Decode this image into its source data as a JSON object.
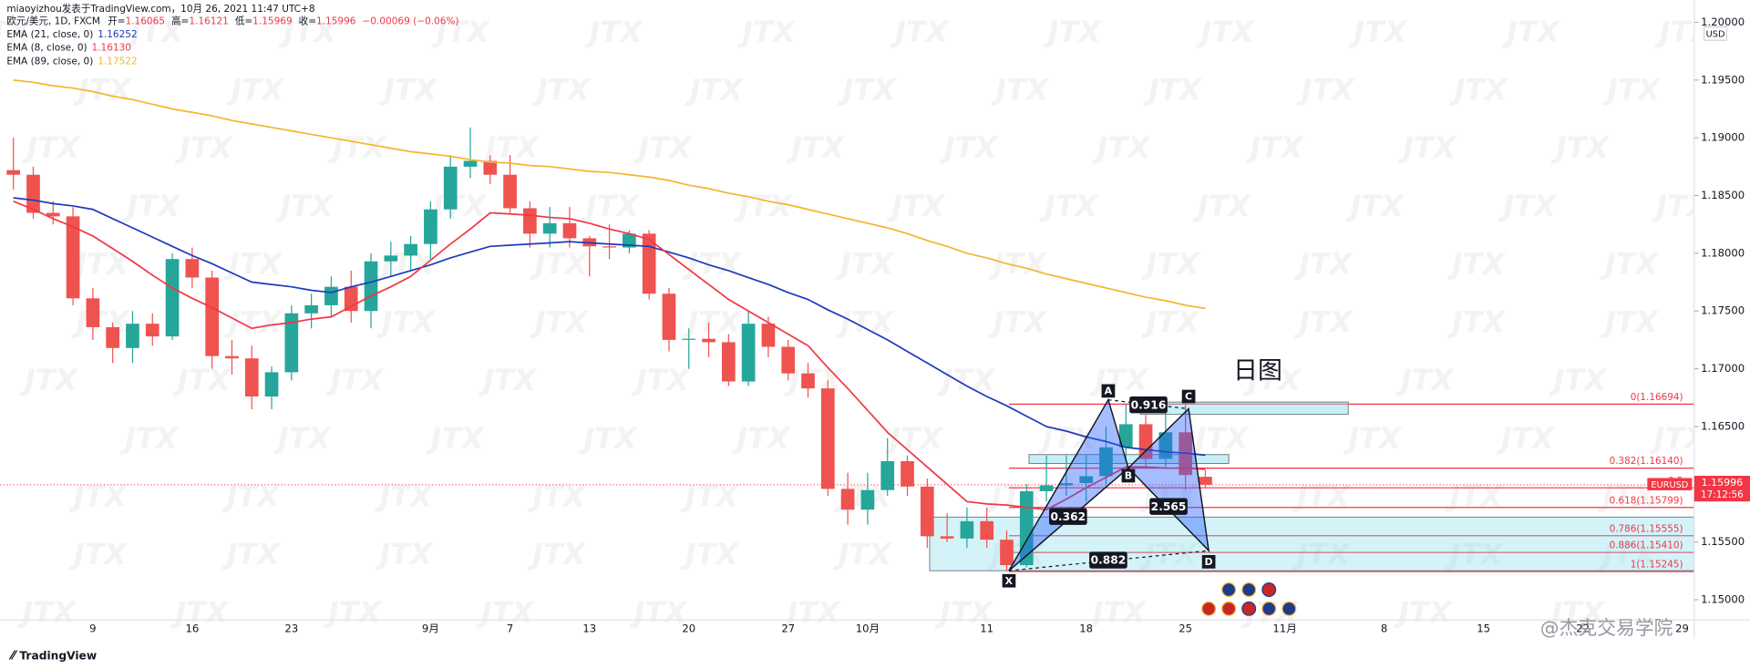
{
  "header": {
    "publisher": "miaoyizhou发表于TradingView.com，10月 26, 2021 11:47 UTC+8",
    "symbol": "欧元/美元, 1D, FXCM",
    "open_prefix": "开=",
    "high_prefix": "高=",
    "low_prefix": "低=",
    "close_prefix": "收=",
    "change": "−0.00069 (−0.06%)"
  },
  "currency": "USD",
  "watermark": "JTX",
  "logo": "TradingView",
  "signature": "@杰克交易学院",
  "annotation": "日图",
  "price_tag": {
    "symbol": "EURUSD",
    "countdown": "17:12:56"
  },
  "pattern": {
    "points": [
      "X",
      "A",
      "B",
      "C",
      "D"
    ],
    "ratios": [
      "0.362",
      "0.916",
      "2.565",
      "0.882"
    ]
  },
  "chart_data": {
    "type": "candlestick",
    "up_color": "#26a69a",
    "down_color": "#ef5350",
    "categories": [
      null,
      null,
      null,
      null,
      "9",
      null,
      null,
      null,
      null,
      "16",
      null,
      null,
      null,
      null,
      "23",
      null,
      null,
      null,
      null,
      null,
      null,
      "9月",
      null,
      null,
      null,
      "7",
      null,
      null,
      null,
      "13",
      null,
      null,
      null,
      null,
      "20",
      null,
      null,
      null,
      null,
      "27",
      null,
      null,
      null,
      "10月",
      null,
      null,
      null,
      null,
      null,
      "11",
      null,
      null,
      null,
      null,
      "18",
      null,
      null,
      null,
      null,
      "25",
      null,
      null,
      null,
      null,
      "11月",
      null,
      null,
      null,
      null,
      "8",
      null,
      null,
      null,
      null,
      "15",
      null,
      null,
      null,
      null,
      "22",
      null,
      null,
      null,
      null,
      "29"
    ],
    "open": [
      1.1872,
      1.1868,
      1.1835,
      1.1832,
      1.1761,
      1.1736,
      1.1718,
      1.1739,
      1.1728,
      1.1795,
      1.1779,
      1.1711,
      1.1709,
      1.1676,
      1.1697,
      1.1748,
      1.1755,
      1.1771,
      1.175,
      1.1793,
      1.1798,
      1.1808,
      1.1838,
      1.1875,
      1.188,
      1.1868,
      1.1839,
      1.1817,
      1.1826,
      1.1813,
      1.1806,
      1.1805,
      1.1817,
      1.1765,
      1.1725,
      1.1726,
      1.1723,
      1.1689,
      1.1739,
      1.1719,
      1.1696,
      1.1683,
      1.1596,
      1.1578,
      1.1595,
      1.162,
      1.1598,
      1.1555,
      1.1553,
      1.1568,
      1.1552,
      1.153,
      1.1594,
      1.1599,
      1.1601,
      1.1607,
      1.1632,
      1.1652,
      1.1622,
      1.1645,
      1.16065,
      null,
      null,
      null,
      null,
      null,
      null,
      null,
      null,
      null,
      null,
      null,
      null,
      null,
      null,
      null,
      null,
      null,
      null,
      null,
      null,
      null,
      null,
      null,
      null
    ],
    "high": [
      1.19,
      1.1875,
      1.1845,
      1.184,
      1.177,
      1.174,
      1.175,
      1.1748,
      1.18,
      1.1805,
      1.1785,
      1.1725,
      1.172,
      1.1702,
      1.1755,
      1.1765,
      1.178,
      1.1785,
      1.18,
      1.181,
      1.1815,
      1.1845,
      1.1885,
      1.1909,
      1.1885,
      1.1885,
      1.1845,
      1.184,
      1.184,
      1.1815,
      1.1825,
      1.182,
      1.182,
      1.177,
      1.1735,
      1.174,
      1.173,
      1.175,
      1.1745,
      1.1725,
      1.1705,
      1.169,
      1.161,
      1.161,
      1.164,
      1.1625,
      1.1605,
      1.1575,
      1.158,
      1.158,
      1.156,
      1.16,
      1.1625,
      1.1625,
      1.1625,
      1.165,
      1.16694,
      1.166,
      1.1665,
      1.1669,
      1.16121,
      null,
      null,
      null,
      null,
      null,
      null,
      null,
      null,
      null,
      null,
      null,
      null,
      null,
      null,
      null,
      null,
      null,
      null,
      null,
      null,
      null,
      null,
      null,
      null
    ],
    "low": [
      1.1855,
      1.183,
      1.1825,
      1.1755,
      1.1725,
      1.1705,
      1.1705,
      1.172,
      1.1725,
      1.177,
      1.17,
      1.1695,
      1.1665,
      1.1665,
      1.169,
      1.1735,
      1.1745,
      1.174,
      1.1735,
      1.178,
      1.1785,
      1.1795,
      1.183,
      1.1865,
      1.186,
      1.1835,
      1.1805,
      1.1805,
      1.1805,
      1.178,
      1.1795,
      1.18,
      1.176,
      1.1715,
      1.17,
      1.171,
      1.1685,
      1.1685,
      1.171,
      1.169,
      1.1675,
      1.159,
      1.1565,
      1.1565,
      1.159,
      1.159,
      1.1545,
      1.155,
      1.1545,
      1.1545,
      1.15245,
      1.1528,
      1.1585,
      1.159,
      1.1585,
      1.16,
      1.162,
      1.1614,
      1.1615,
      1.1595,
      1.15969,
      null,
      null,
      null,
      null,
      null,
      null,
      null,
      null,
      null,
      null,
      null,
      null,
      null,
      null,
      null,
      null,
      null,
      null,
      null,
      null,
      null,
      null,
      null,
      null
    ],
    "close": [
      1.1868,
      1.1835,
      1.1832,
      1.1761,
      1.1736,
      1.1718,
      1.1739,
      1.1728,
      1.1795,
      1.1779,
      1.1711,
      1.1709,
      1.1676,
      1.1697,
      1.1748,
      1.1755,
      1.1771,
      1.175,
      1.1793,
      1.1798,
      1.1808,
      1.1838,
      1.1875,
      1.188,
      1.1868,
      1.1839,
      1.1817,
      1.1826,
      1.1813,
      1.1806,
      1.1805,
      1.1817,
      1.1765,
      1.1725,
      1.1726,
      1.1723,
      1.1689,
      1.1739,
      1.1719,
      1.1696,
      1.1683,
      1.1596,
      1.1578,
      1.1595,
      1.162,
      1.1598,
      1.1555,
      1.1553,
      1.1568,
      1.1552,
      1.153,
      1.1594,
      1.1599,
      1.1601,
      1.1607,
      1.1632,
      1.1652,
      1.1622,
      1.1645,
      1.1608,
      1.15996,
      null,
      null,
      null,
      null,
      null,
      null,
      null,
      null,
      null,
      null,
      null,
      null,
      null,
      null,
      null,
      null,
      null,
      null,
      null,
      null,
      null,
      null,
      null,
      null
    ],
    "series": [
      {
        "name": "EMA (21, close, 0)",
        "color": "#1e3aba",
        "value_label": "1.16252",
        "values": [
          1.1848,
          1.1846,
          1.1843,
          1.1841,
          1.1838,
          1.183,
          1.1822,
          1.1814,
          1.1806,
          1.1798,
          1.1791,
          1.1783,
          1.1775,
          1.1773,
          1.1771,
          1.1768,
          1.1766,
          1.1771,
          1.1775,
          1.178,
          1.1785,
          1.179,
          1.1796,
          1.1801,
          1.1806,
          1.1807,
          1.1808,
          1.1809,
          1.181,
          1.1809,
          1.1808,
          1.1807,
          1.1806,
          1.1801,
          1.1796,
          1.179,
          1.1785,
          1.1779,
          1.1773,
          1.1766,
          1.176,
          1.1751,
          1.1743,
          1.1734,
          1.1725,
          1.1715,
          1.1705,
          1.1695,
          1.1685,
          1.1676,
          1.1668,
          1.1659,
          1.165,
          1.1646,
          1.1641,
          1.1637,
          1.1632,
          1.163,
          1.1628,
          1.1627,
          1.16252,
          null,
          null,
          null,
          null,
          null,
          null,
          null,
          null,
          null,
          null,
          null,
          null,
          null,
          null,
          null,
          null,
          null,
          null,
          null,
          null,
          null,
          null,
          null,
          null
        ]
      },
      {
        "name": "EMA (8, close, 0)",
        "color": "#f23645",
        "value_label": "1.16130",
        "values": [
          1.1845,
          1.1838,
          1.183,
          1.1823,
          1.1815,
          1.1804,
          1.1793,
          1.1781,
          1.177,
          1.1761,
          1.1753,
          1.1744,
          1.1735,
          1.1738,
          1.174,
          1.1743,
          1.1745,
          1.1754,
          1.1763,
          1.1771,
          1.178,
          1.1794,
          1.1808,
          1.1821,
          1.1835,
          1.1834,
          1.1833,
          1.1831,
          1.183,
          1.1826,
          1.1821,
          1.1817,
          1.1812,
          1.1799,
          1.1786,
          1.1773,
          1.176,
          1.175,
          1.174,
          1.173,
          1.172,
          1.1701,
          1.1683,
          1.1664,
          1.1645,
          1.163,
          1.1615,
          1.16,
          1.1585,
          1.1583,
          1.1582,
          1.158,
          1.1578,
          1.1587,
          1.1597,
          1.1606,
          1.1615,
          1.1615,
          1.1614,
          1.1614,
          1.1613,
          null,
          null,
          null,
          null,
          null,
          null,
          null,
          null,
          null,
          null,
          null,
          null,
          null,
          null,
          null,
          null,
          null,
          null,
          null,
          null,
          null,
          null,
          null,
          null
        ]
      },
      {
        "name": "EMA (89, close, 0)",
        "color": "#f5b530",
        "value_label": "1.17522",
        "values": [
          1.195,
          1.1948,
          1.1945,
          1.1943,
          1.194,
          1.1936,
          1.1933,
          1.1929,
          1.1925,
          1.1922,
          1.1919,
          1.1915,
          1.1912,
          1.1909,
          1.1906,
          1.1903,
          1.19,
          1.1897,
          1.1894,
          1.1891,
          1.1888,
          1.1886,
          1.1884,
          1.1881,
          1.1879,
          1.1878,
          1.1876,
          1.1875,
          1.1873,
          1.1871,
          1.187,
          1.1868,
          1.1866,
          1.1863,
          1.1859,
          1.1856,
          1.1852,
          1.1849,
          1.1845,
          1.1842,
          1.1838,
          1.1834,
          1.183,
          1.1826,
          1.1822,
          1.1817,
          1.1811,
          1.1806,
          1.18,
          1.1796,
          1.1791,
          1.1787,
          1.1782,
          1.1778,
          1.1774,
          1.177,
          1.1766,
          1.1762,
          1.1759,
          1.1755,
          1.17522,
          null,
          null,
          null,
          null,
          null,
          null,
          null,
          null,
          null,
          null,
          null,
          null,
          null,
          null,
          null,
          null,
          null,
          null,
          null,
          null,
          null,
          null,
          null,
          null
        ]
      }
    ],
    "ylim": [
      1.14826,
      1.20193
    ],
    "yticks": [
      {
        "value": 1.15,
        "label": "1.15000"
      },
      {
        "value": 1.155,
        "label": "1.15500"
      },
      {
        "value": 1.16,
        "label": "1.16000"
      },
      {
        "value": 1.165,
        "label": "1.16500"
      },
      {
        "value": 1.17,
        "label": "1.17000"
      },
      {
        "value": 1.175,
        "label": "1.17500"
      },
      {
        "value": 1.18,
        "label": "1.18000"
      },
      {
        "value": 1.185,
        "label": "1.18500"
      },
      {
        "value": 1.19,
        "label": "1.19000"
      },
      {
        "value": 1.195,
        "label": "1.19500"
      },
      {
        "value": 1.2,
        "label": "1.20000"
      }
    ],
    "grid": false,
    "fib": {
      "color": "#f23645",
      "levels": [
        {
          "value": 1.16694,
          "label": "0(1.16694)"
        },
        {
          "value": 1.1614,
          "label": "0.382(1.16140)"
        },
        {
          "value": 1.159695,
          "label": "0.5"
        },
        {
          "value": 1.15799,
          "label": "0.618(1.15799)"
        },
        {
          "value": 1.15555,
          "label": "0.786(1.15555)"
        },
        {
          "value": 1.1541,
          "label": "0.886(1.15410)"
        },
        {
          "value": 1.15245,
          "label": "1(1.15245)"
        }
      ]
    }
  }
}
